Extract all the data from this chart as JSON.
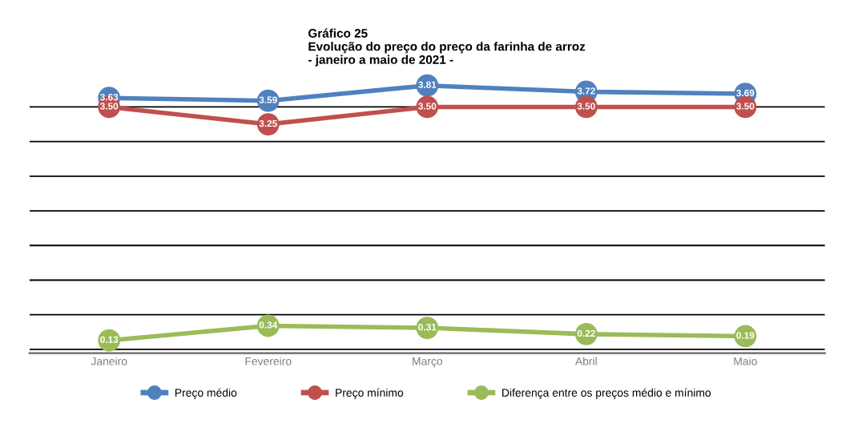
{
  "chart_data": {
    "type": "line",
    "title": "Gráfico 25\nEvolução do preço do preço da farinha de arroz\n- janeiro a maio de 2021 -",
    "categories": [
      "Janeiro",
      "Fevereiro",
      "Março",
      "Abril",
      "Maio"
    ],
    "series": [
      {
        "name": "Preço médio",
        "color": "#4f81bd",
        "values": [
          3.63,
          3.59,
          3.81,
          3.72,
          3.69
        ],
        "value_labels": [
          "3.63",
          "3.59",
          "3.81",
          "3.72",
          "3.69"
        ]
      },
      {
        "name": "Preço mínimo",
        "color": "#c0504d",
        "values": [
          3.5,
          3.25,
          3.5,
          3.5,
          3.5
        ],
        "value_labels": [
          "3.50",
          "3.25",
          "3.50",
          "3.50",
          "3.50"
        ]
      },
      {
        "name": "Diferença entre os preços médio e mínimo",
        "color": "#9bbb59",
        "values": [
          0.13,
          0.34,
          0.31,
          0.22,
          0.19
        ],
        "value_labels": [
          "0.13",
          "0.34",
          "0.31",
          "0.22",
          "0.19"
        ]
      }
    ],
    "tick_labels": "x",
    "grid": "y",
    "marker": "circle",
    "line_style": "solid",
    "legend": "bottom"
  }
}
